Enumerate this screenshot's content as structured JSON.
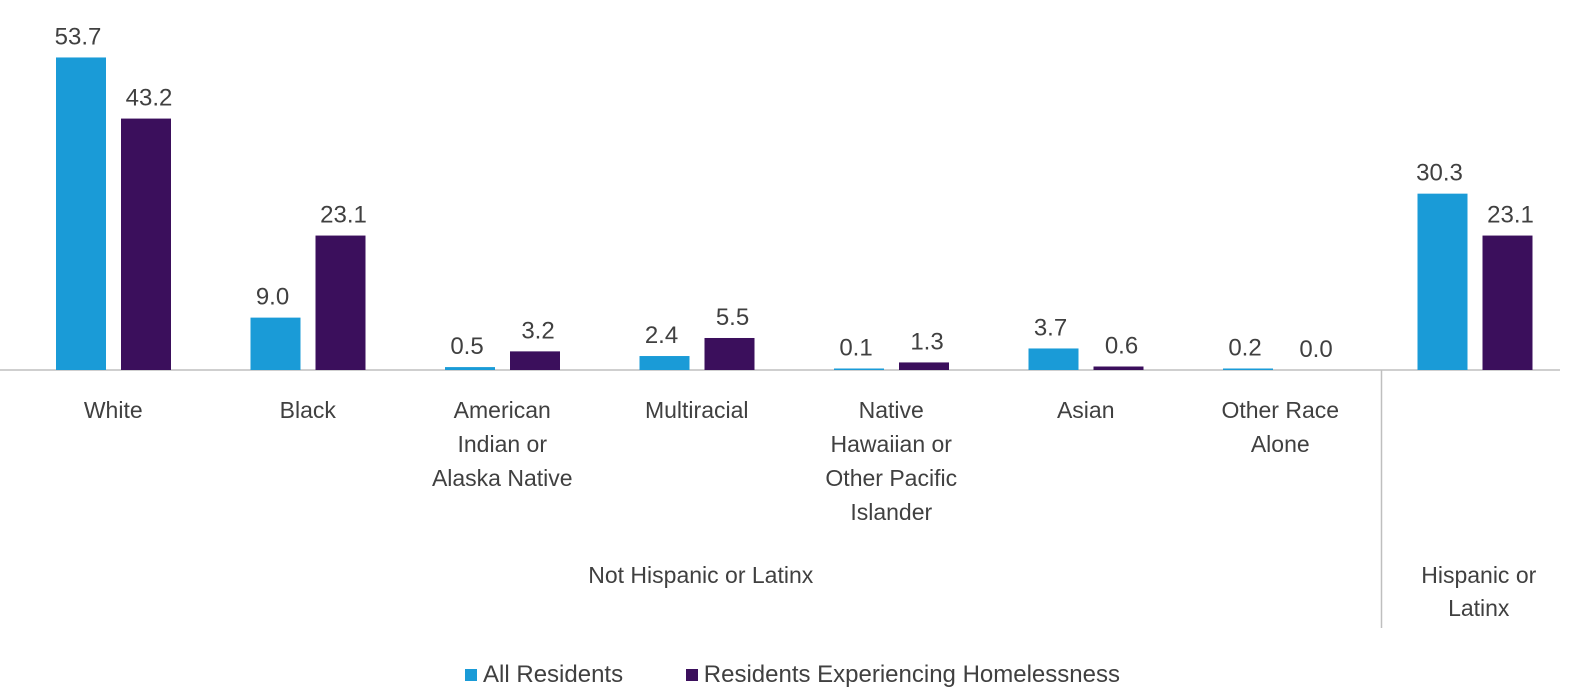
{
  "colors": {
    "all_residents": "#1a9bd7",
    "homelessness": "#3b0f5c",
    "axis": "#bfbfbf",
    "text": "#404040"
  },
  "legend": {
    "all_residents": "All Residents",
    "homelessness": "Residents Experiencing Homelessness"
  },
  "chart_data": {
    "type": "bar",
    "categories": [
      {
        "lines": [
          "White"
        ],
        "group": "Not Hispanic or Latinx"
      },
      {
        "lines": [
          "Black"
        ],
        "group": "Not Hispanic or Latinx"
      },
      {
        "lines": [
          "American",
          "Indian or",
          "Alaska Native"
        ],
        "group": "Not Hispanic or Latinx"
      },
      {
        "lines": [
          "Multiracial"
        ],
        "group": "Not Hispanic or Latinx"
      },
      {
        "lines": [
          "Native",
          "Hawaiian or",
          "Other Pacific",
          "Islander"
        ],
        "group": "Not Hispanic or Latinx"
      },
      {
        "lines": [
          "Asian"
        ],
        "group": "Not Hispanic or Latinx"
      },
      {
        "lines": [
          "Other Race",
          "Alone"
        ],
        "group": "Not Hispanic or Latinx"
      },
      {
        "lines": [],
        "group": "Hispanic or Latinx"
      }
    ],
    "groups": [
      {
        "lines": [
          "Not Hispanic or Latinx"
        ],
        "span": 7
      },
      {
        "lines": [
          "Hispanic or",
          "Latinx"
        ],
        "span": 1
      }
    ],
    "series": [
      {
        "name": "All Residents",
        "values": [
          53.7,
          9.0,
          0.5,
          2.4,
          0.1,
          3.7,
          0.2,
          30.3
        ],
        "labels": [
          "53.7",
          "9.0",
          "0.5",
          "2.4",
          "0.1",
          "3.7",
          "0.2",
          "30.3"
        ]
      },
      {
        "name": "Residents Experiencing Homelessness",
        "values": [
          43.2,
          23.1,
          3.2,
          5.5,
          1.3,
          0.6,
          0.0,
          23.1
        ],
        "labels": [
          "43.2",
          "23.1",
          "3.2",
          "5.5",
          "1.3",
          "0.6",
          "0.0",
          "23.1"
        ]
      }
    ],
    "ylim": [
      0,
      55
    ],
    "grid": false,
    "legend_position": "bottom"
  }
}
